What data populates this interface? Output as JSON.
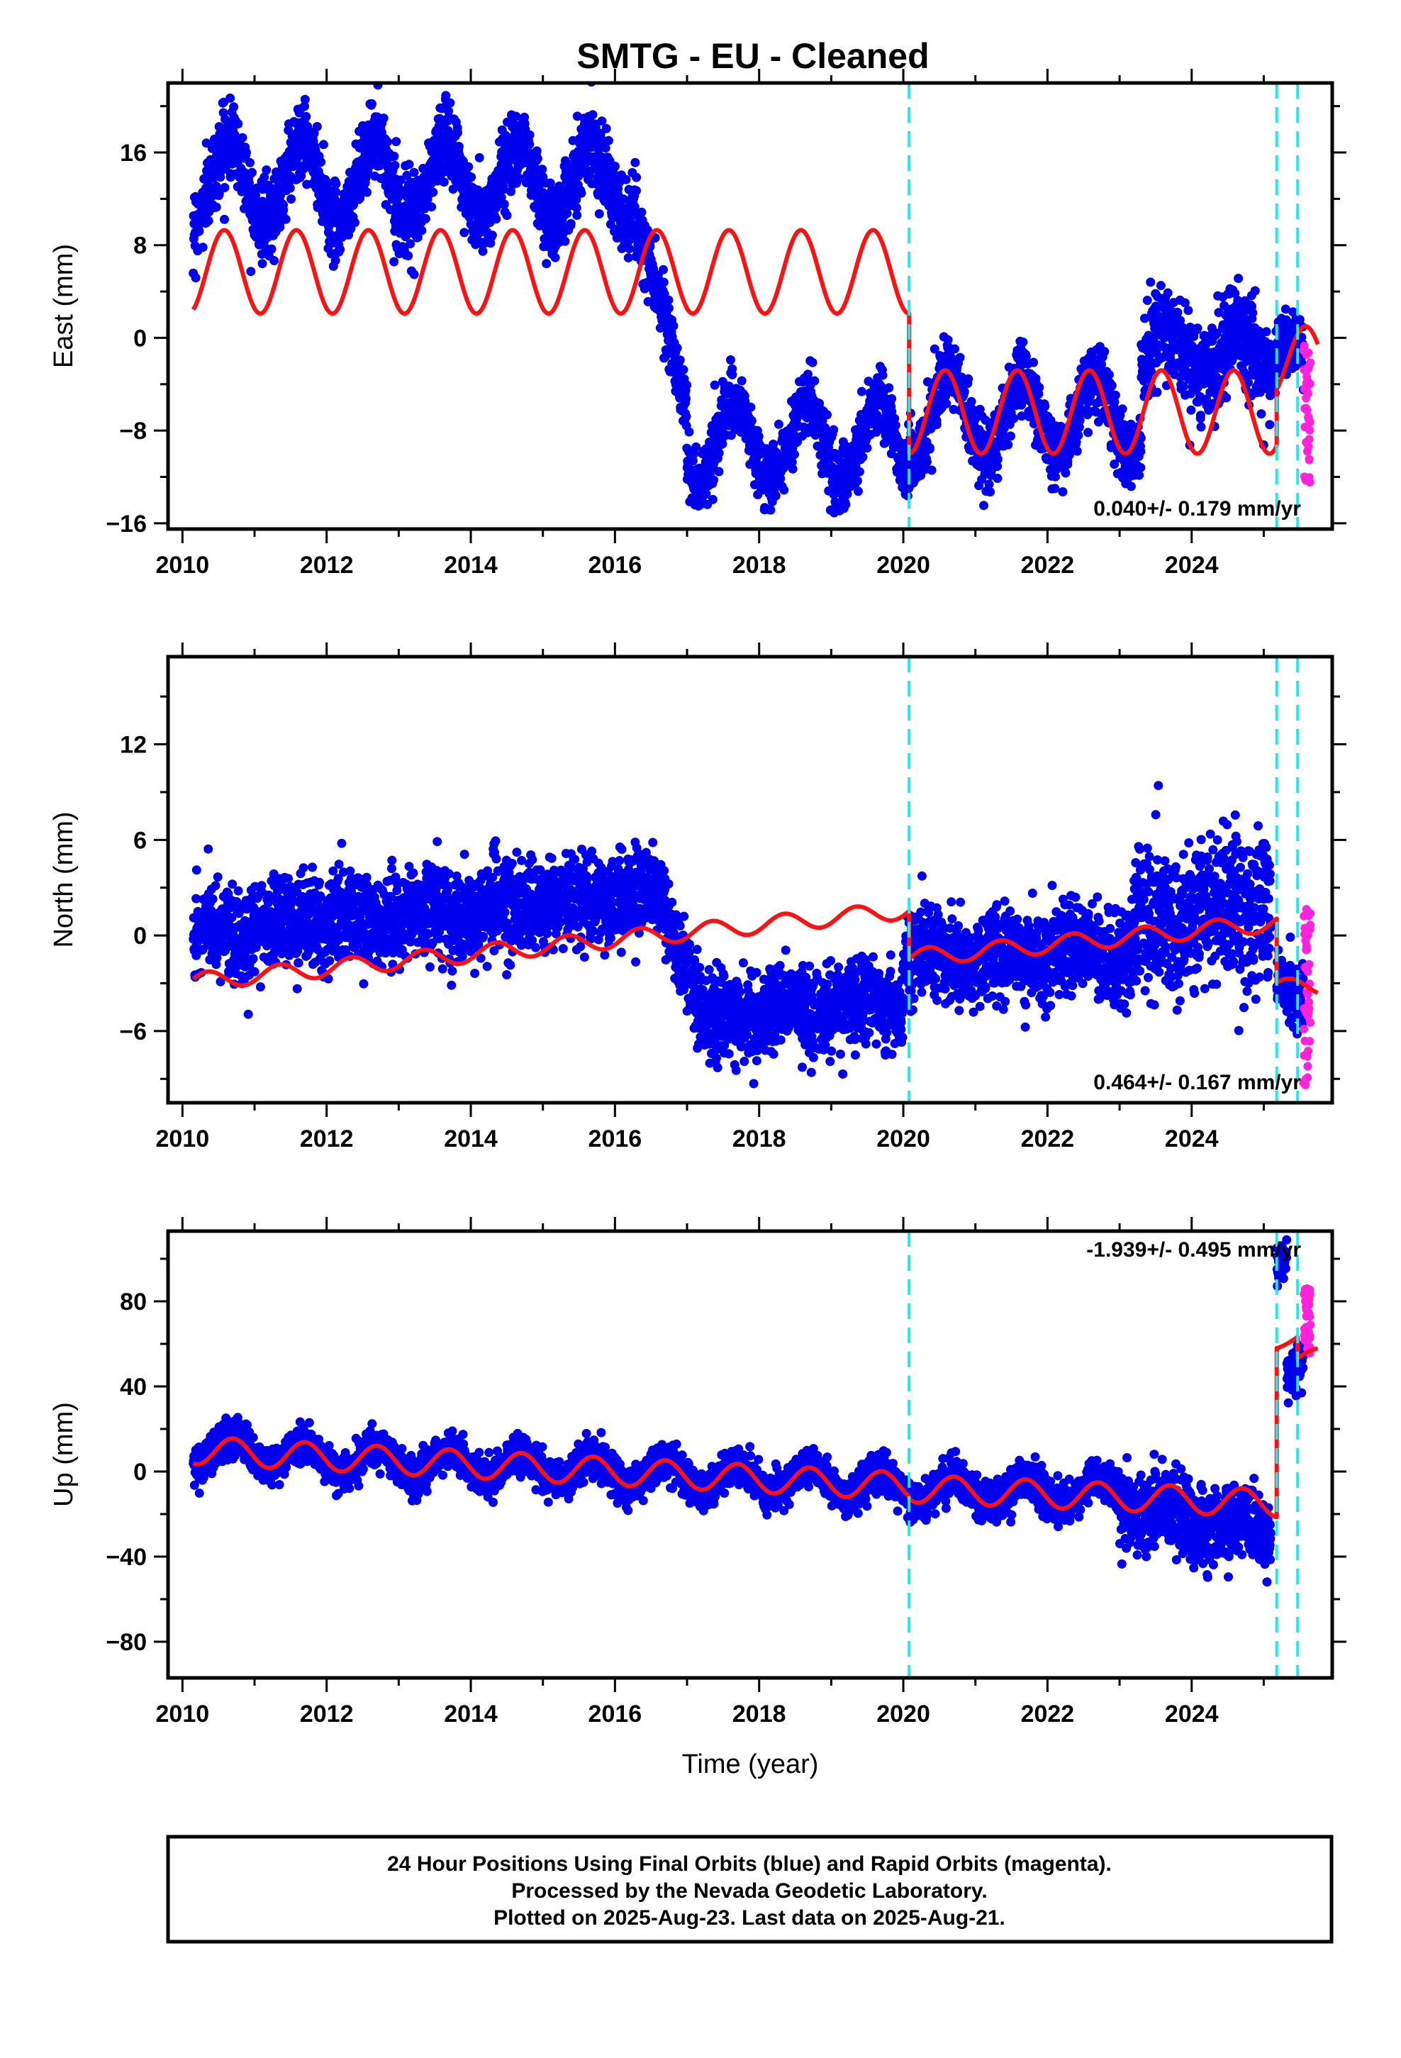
{
  "title": "SMTG  - EU - Cleaned",
  "colors": {
    "final": "#0000ee",
    "rapid": "#ff22dd",
    "model": "#ff1111",
    "breaks": "#22e8f0"
  },
  "chart_data": [
    {
      "type": "scatter",
      "ylabel": "East (mm)",
      "xlim": [
        2009.8,
        2025.95
      ],
      "ylim": [
        -16.5,
        22
      ],
      "yticks": [
        -16,
        -8,
        0,
        8,
        16
      ],
      "xticks": [
        2010,
        2012,
        2014,
        2016,
        2018,
        2020,
        2022,
        2024
      ],
      "rate_label": "0.040+/- 0.179 mm/yr",
      "breaks": [
        2020.08,
        2025.18,
        2025.47
      ],
      "model_segments": [
        {
          "x_start": 2010.15,
          "x_end": 2020.08,
          "offset": 5.7,
          "amp": 3.6,
          "phase": 0.33
        },
        {
          "x_start": 2020.08,
          "x_end": 2025.18,
          "offset": -6.4,
          "amp": 3.6,
          "phase": 0.33
        },
        {
          "x_start": 2025.18,
          "x_end": 2025.75,
          "offset": -2.0,
          "amp": 3.0,
          "phase": 0.33
        }
      ],
      "final_series": [
        {
          "x_start": 2010.15,
          "x_end": 2016.3,
          "mid": 13.5,
          "mid_end": 13.5,
          "amp": 3.5,
          "noise": 1.6,
          "phase": 0.4
        },
        {
          "x_start": 2016.3,
          "x_end": 2017.0,
          "mid": 10.0,
          "mid_end": -6.0,
          "amp": 1.0,
          "noise": 1.4,
          "phase": 0.4
        },
        {
          "x_start": 2017.0,
          "x_end": 2020.08,
          "mid": -9.0,
          "mid_end": -9.0,
          "amp": 3.4,
          "noise": 1.4,
          "phase": 0.4
        },
        {
          "x_start": 2020.08,
          "x_end": 2023.3,
          "mid": -6.8,
          "mid_end": -6.8,
          "amp": 3.5,
          "noise": 1.4,
          "phase": 0.4
        },
        {
          "x_start": 2023.3,
          "x_end": 2025.18,
          "mid": -1.5,
          "mid_end": -1.5,
          "amp": 2.0,
          "noise": 2.0,
          "phase": 0.4
        },
        {
          "x_start": 2025.18,
          "x_end": 2025.55,
          "mid": 0.5,
          "mid_end": -1.0,
          "amp": 0.5,
          "noise": 1.2,
          "phase": 0.4
        }
      ],
      "rapid_series": {
        "x_start": 2025.55,
        "x_end": 2025.65,
        "y_min": -13,
        "y_max": 0
      }
    },
    {
      "type": "scatter",
      "ylabel": "North (mm)",
      "xlim": [
        2009.8,
        2025.95
      ],
      "ylim": [
        -10.5,
        17.5
      ],
      "yticks": [
        -6,
        0,
        6,
        12
      ],
      "xticks": [
        2010,
        2012,
        2014,
        2016,
        2018,
        2020,
        2022,
        2024
      ],
      "rate_label": "0.464+/- 0.167 mm/yr",
      "breaks": [
        2020.08,
        2025.18,
        2025.47
      ],
      "model_segments": [
        {
          "x_start": 2010.15,
          "x_end": 2020.08,
          "offset_start": -2.9,
          "offset_end": 1.6,
          "amp": 0.55,
          "phase": 0.1
        },
        {
          "x_start": 2020.08,
          "x_end": 2025.18,
          "offset_start": -1.4,
          "offset_end": 0.8,
          "amp": 0.55,
          "phase": 0.1
        },
        {
          "x_start": 2025.18,
          "x_end": 2025.75,
          "offset_start": -3.2,
          "offset_end": -3.2,
          "amp": 0.5,
          "phase": 0.1
        }
      ],
      "final_series": [
        {
          "x_start": 2010.15,
          "x_end": 2016.7,
          "mid": 0.2,
          "mid_end": 2.6,
          "amp": 0.4,
          "noise": 1.4,
          "phase": 0.1
        },
        {
          "x_start": 2016.7,
          "x_end": 2017.2,
          "mid": 1.0,
          "mid_end": -4.5,
          "amp": 0.3,
          "noise": 1.5,
          "phase": 0.1
        },
        {
          "x_start": 2017.2,
          "x_end": 2020.0,
          "mid": -5.3,
          "mid_end": -4.0,
          "amp": 0.4,
          "noise": 1.3,
          "phase": 0.1
        },
        {
          "x_start": 2020.0,
          "x_end": 2023.2,
          "mid": -1.6,
          "mid_end": -0.8,
          "amp": 0.5,
          "noise": 1.4,
          "phase": 0.1
        },
        {
          "x_start": 2023.2,
          "x_end": 2025.1,
          "mid": 0.5,
          "mid_end": 2.0,
          "amp": 0.6,
          "noise": 2.4,
          "phase": 0.1
        },
        {
          "x_start": 2025.18,
          "x_end": 2025.55,
          "mid": -3.0,
          "mid_end": -4.0,
          "amp": 0.3,
          "noise": 1.0,
          "phase": 0.1
        }
      ],
      "rapid_series": {
        "x_start": 2025.55,
        "x_end": 2025.65,
        "y_min": -9.5,
        "y_max": 2.5
      }
    },
    {
      "type": "scatter",
      "ylabel": "Up (mm)",
      "xlabel": "Time (year)",
      "xlim": [
        2009.8,
        2025.95
      ],
      "ylim": [
        -97,
        113
      ],
      "yticks": [
        -80,
        -40,
        0,
        40,
        80
      ],
      "xticks": [
        2010,
        2012,
        2014,
        2016,
        2018,
        2020,
        2022,
        2024
      ],
      "rate_label": "-1.939+/- 0.495 mm/yr",
      "breaks": [
        2020.08,
        2025.18,
        2025.47
      ],
      "model_segments": [
        {
          "x_start": 2010.15,
          "x_end": 2020.08,
          "offset_start": 10.0,
          "offset_end": -7.0,
          "amp": 6.5,
          "phase": 0.45
        },
        {
          "x_start": 2020.08,
          "x_end": 2025.18,
          "offset_start": -8.0,
          "offset_end": -15.0,
          "amp": 6.5,
          "phase": 0.45
        },
        {
          "x_start": 2025.18,
          "x_end": 2025.47,
          "offset_start": 60.0,
          "offset_end": 63.0,
          "amp": 2.0,
          "phase": 0.45
        },
        {
          "x_start": 2025.47,
          "x_end": 2025.75,
          "offset_start": 53.0,
          "offset_end": 56.0,
          "amp": 2.0,
          "phase": 0.45
        }
      ],
      "final_series": [
        {
          "x_start": 2010.15,
          "x_end": 2020.08,
          "mid": 10.0,
          "mid_end": -7.0,
          "amp": 6.5,
          "noise": 4.2,
          "phase": 0.45
        },
        {
          "x_start": 2020.08,
          "x_end": 2023.0,
          "mid": -8.0,
          "mid_end": -10.0,
          "amp": 6.5,
          "noise": 4.5,
          "phase": 0.45
        },
        {
          "x_start": 2023.0,
          "x_end": 2025.1,
          "mid": -15.0,
          "mid_end": -30.0,
          "amp": 5.0,
          "noise": 9.0,
          "phase": 0.45
        },
        {
          "x_start": 2025.18,
          "x_end": 2025.32,
          "mid": 95.0,
          "mid_end": 100.0,
          "amp": 1.0,
          "noise": 5.0,
          "phase": 0.45
        },
        {
          "x_start": 2025.32,
          "x_end": 2025.55,
          "mid": 45.0,
          "mid_end": 52.0,
          "amp": 1.0,
          "noise": 5.0,
          "phase": 0.45
        }
      ],
      "rapid_series": {
        "x_start": 2025.55,
        "x_end": 2025.65,
        "y_min": 55,
        "y_max": 87
      }
    }
  ],
  "footer": {
    "line1": "24 Hour Positions Using Final Orbits (blue) and Rapid Orbits (magenta).",
    "line2": "Processed by the Nevada Geodetic Laboratory.",
    "line3": "Plotted on 2025-Aug-23. Last data on 2025-Aug-21."
  }
}
